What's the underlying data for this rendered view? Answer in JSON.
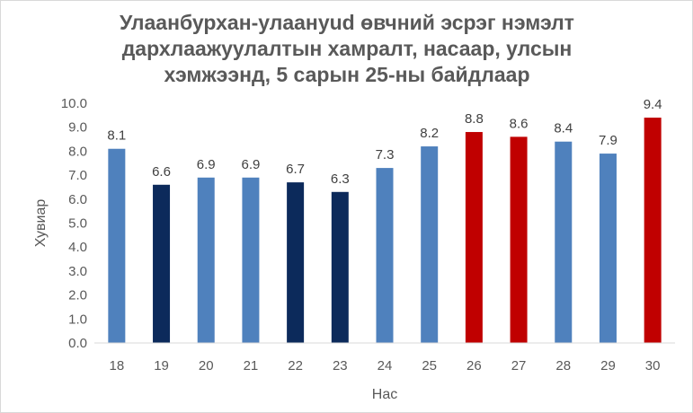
{
  "chart_data": {
    "type": "bar",
    "title_lines": [
      "Улаанбурхан-улаануud өвчний эсрэг нэмэлт",
      "дархлаажуулалтын хамралт, насаар, улсын",
      "хэмжээнд, 5 сарын 25-ны байдлаар"
    ],
    "xlabel": "Нас",
    "ylabel": "Хувиар",
    "categories": [
      "18",
      "19",
      "20",
      "21",
      "22",
      "23",
      "24",
      "25",
      "26",
      "27",
      "28",
      "29",
      "30"
    ],
    "values": [
      8.1,
      6.6,
      6.9,
      6.9,
      6.7,
      6.3,
      7.3,
      8.2,
      8.8,
      8.6,
      8.4,
      7.9,
      9.4
    ],
    "value_labels": [
      "8.1",
      "6.6",
      "6.9",
      "6.9",
      "6.7",
      "6.3",
      "7.3",
      "8.2",
      "8.8",
      "8.6",
      "8.4",
      "7.9",
      "9.4"
    ],
    "bar_colors": [
      "#4f81bd",
      "#0c2a5b",
      "#4f81bd",
      "#4f81bd",
      "#0c2a5b",
      "#0c2a5b",
      "#4f81bd",
      "#4f81bd",
      "#c00000",
      "#c00000",
      "#4f81bd",
      "#4f81bd",
      "#c00000"
    ],
    "ylim": [
      0,
      10
    ],
    "yticks": [
      "0.0",
      "1.0",
      "2.0",
      "3.0",
      "4.0",
      "5.0",
      "6.0",
      "7.0",
      "8.0",
      "9.0",
      "10.0"
    ],
    "ytick_values": [
      0,
      1,
      2,
      3,
      4,
      5,
      6,
      7,
      8,
      9,
      10
    ],
    "grid": false,
    "legend": "none"
  }
}
